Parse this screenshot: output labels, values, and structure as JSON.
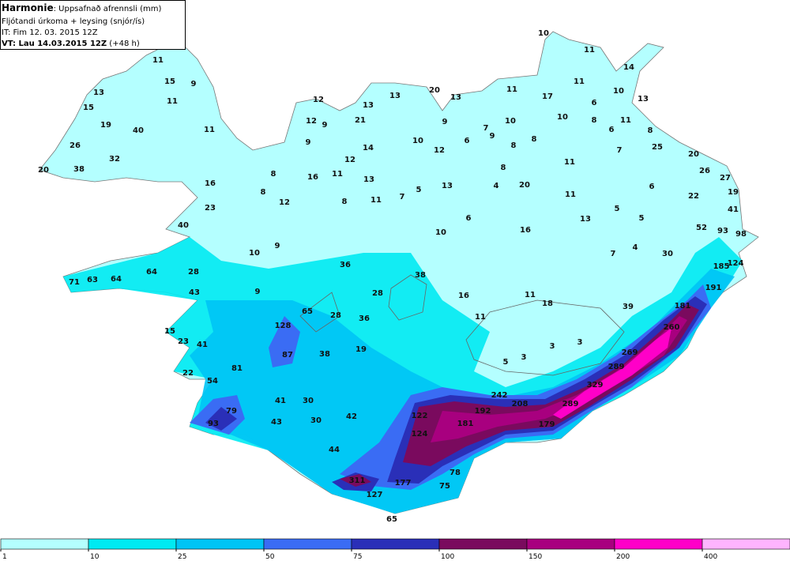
{
  "header": {
    "model": "Harmonie",
    "title": ": Uppsafnað afrennsli (mm)",
    "subtitle": "Fljótandi úrkoma + leysing (snjór/ís)",
    "init_time": "IT: Fim 12. 03. 2015 12Z",
    "valid_time": "VT: Lau 14.03.2015 12Z",
    "lead": " (+48 h)"
  },
  "labels": [
    10,
    11,
    14,
    11,
    15,
    9,
    11,
    11,
    17,
    10,
    13,
    13,
    11,
    12,
    13,
    13,
    20,
    13,
    6,
    15,
    12,
    9,
    21,
    9,
    10,
    10,
    8,
    6,
    11,
    19,
    11,
    40,
    7,
    9,
    10,
    6,
    8,
    8,
    8,
    9,
    12,
    14,
    25,
    7,
    26,
    32,
    20,
    12,
    8,
    11,
    20,
    38,
    8,
    16,
    11,
    13,
    26,
    27,
    16,
    5,
    13,
    4,
    20,
    11,
    6,
    19,
    8,
    7,
    22,
    12,
    8,
    11,
    23,
    5,
    41,
    6,
    13,
    5,
    40,
    52,
    93,
    98,
    10,
    16,
    10,
    9,
    7,
    4,
    30,
    124,
    185,
    36,
    64,
    28,
    38,
    71,
    63,
    64,
    191,
    9,
    28,
    16,
    43,
    11,
    18,
    181,
    39,
    65,
    28,
    36,
    11,
    15,
    128,
    260,
    23,
    41,
    3,
    3,
    19,
    269,
    87,
    38,
    22,
    5,
    3,
    81,
    289,
    54,
    329,
    242,
    208,
    41,
    30,
    192,
    289,
    79,
    122,
    42,
    93,
    43,
    30,
    181,
    179,
    124,
    44,
    78,
    311,
    177,
    75,
    127,
    65
  ],
  "legend": {
    "bounds": [
      1,
      10,
      25,
      50,
      75,
      100,
      150,
      200,
      400
    ],
    "colors": [
      "#b4ffff",
      "#00eaf2",
      "#00c4f5",
      "#3a6cf4",
      "#2a2fb8",
      "#7a0a5e",
      "#a8007f",
      "#ff00c8",
      "#ffb4ff"
    ]
  }
}
